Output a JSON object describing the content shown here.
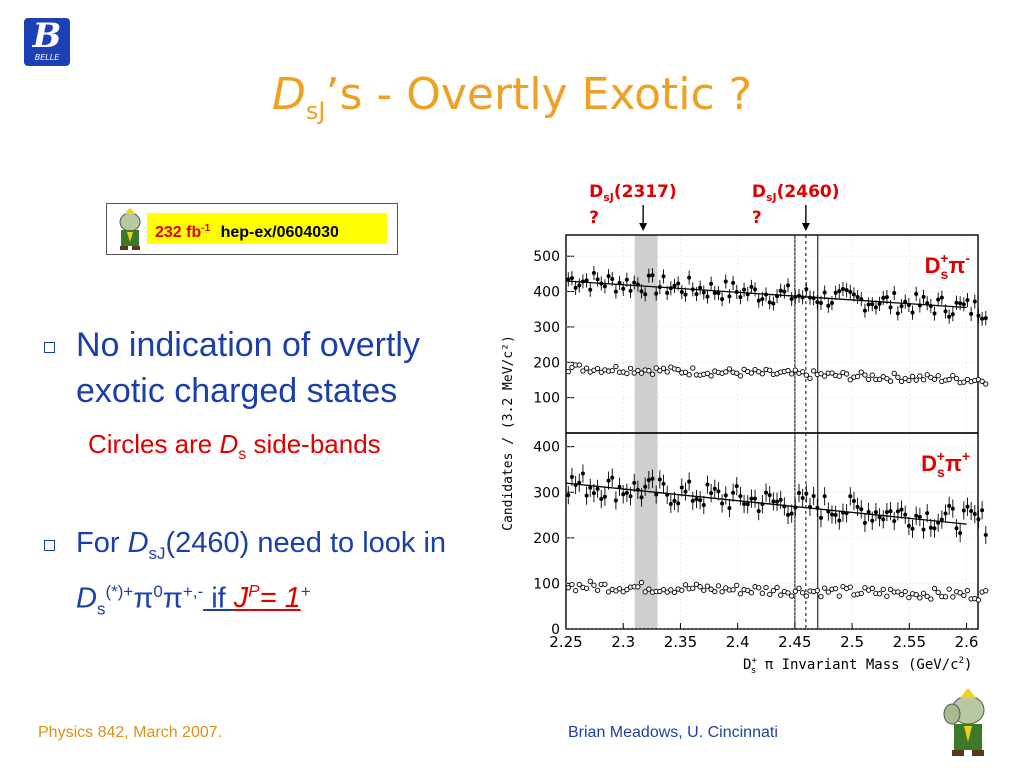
{
  "logo": {
    "letter": "B",
    "text": "BELLE"
  },
  "slide_title": {
    "italic": "D",
    "sub": "sJ",
    "rest": "’s - Overtly Exotic ?"
  },
  "reference": {
    "lumi": "232 fb",
    "lumi_sup": "-1",
    "arxiv": "hep-ex/0604030"
  },
  "bullets": [
    {
      "text": "No indication of overtly exotic charged states"
    },
    {
      "pre": "For ",
      "d": "D",
      "d_sub": "sJ",
      "mid": "(2460) need to look in ",
      "d2": "D",
      "d2_sub": "s",
      "sup1": "(*)+",
      "pi0": "π",
      "pi0_sup": "0",
      "pi": "π",
      "pi_sup": "+,-",
      "if": " if ",
      "j": "J",
      "p": "P",
      "eq": "= 1",
      "plus": "+"
    }
  ],
  "sub_bullet": {
    "pre": "Circles are ",
    "d": "D",
    "d_sub": "s",
    "post": " side-bands"
  },
  "footer": {
    "left": "Physics 842, March 2007.",
    "right": "Brian Meadows, U. Cincinnati"
  },
  "colors": {
    "title": "#f0a020",
    "bullet": "#1b3fa8",
    "highlight": "#e00000",
    "band": "#cfcfcf"
  },
  "chart_data": {
    "type": "scatter",
    "xlabel": "D",
    "xlabel_sup": "+",
    "xlabel_sub": "s",
    "xlabel_rest": " π   Invariant Mass (GeV/c",
    "xlabel_unit_sup": "2",
    "xlabel_end": ")",
    "ylabel": "Candidates / (3.2 MeV/c²)",
    "xlim": [
      2.25,
      2.61
    ],
    "x_ticks": [
      "2.25",
      "2.3",
      "2.35",
      "2.4",
      "2.45",
      "2.5",
      "2.55",
      "2.6"
    ],
    "band": [
      2.31,
      2.33
    ],
    "box": [
      2.45,
      2.47
    ],
    "annotations": [
      {
        "label": "D",
        "label_sub": "sJ",
        "label_rest": "(2317)",
        "q": "?",
        "x": 2.3174
      },
      {
        "label": "D",
        "label_sub": "sJ",
        "label_rest": "(2460)",
        "q": "?",
        "x": 2.4596
      }
    ],
    "panels": [
      {
        "name": "D",
        "name_sub": "s",
        "name_sup": "+",
        "pi": "π",
        "pi_sup": "-",
        "ylim": [
          0,
          560
        ],
        "y_ticks": [
          100,
          200,
          300,
          400,
          500
        ],
        "series": [
          {
            "marker": "filled",
            "fit": [
              430,
              355
            ],
            "start": 435,
            "end": 350
          },
          {
            "marker": "open",
            "start": 185,
            "end": 150
          }
        ]
      },
      {
        "name": "D",
        "name_sub": "s",
        "name_sup": "+",
        "pi": "π",
        "pi_sup": "+",
        "ylim": [
          0,
          430
        ],
        "y_ticks": [
          0,
          100,
          200,
          300,
          400
        ],
        "series": [
          {
            "marker": "filled",
            "fit": [
              320,
              230
            ],
            "start": 320,
            "end": 235
          },
          {
            "marker": "open",
            "start": 95,
            "end": 75
          }
        ]
      }
    ]
  }
}
